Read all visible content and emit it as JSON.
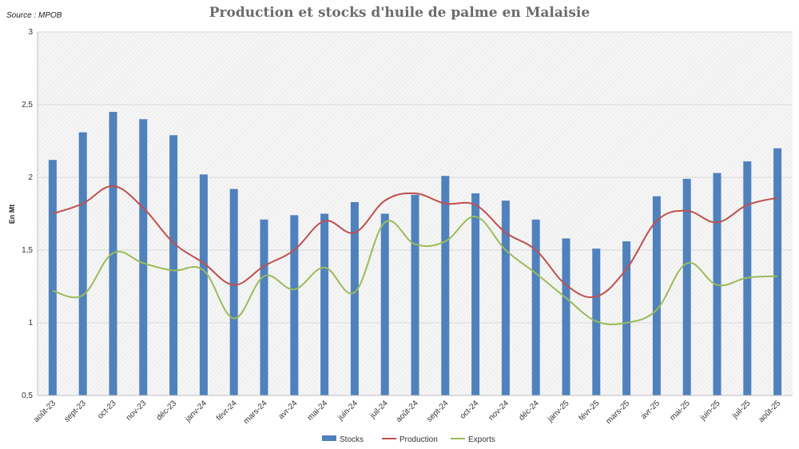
{
  "source": "Source : MPOB",
  "chart_data": {
    "type": "bar",
    "title": "Production et stocks d'huile de palme en Malaisie",
    "xlabel": "",
    "ylabel": "En Mt",
    "ylim": [
      0.5,
      3
    ],
    "yticks": [
      "0,5",
      "1",
      "1,5",
      "2",
      "2,5",
      "3"
    ],
    "ytick_values": [
      0.5,
      1,
      1.5,
      2,
      2.5,
      3
    ],
    "grid": true,
    "legend_position": "bottom",
    "categories": [
      "août-23",
      "sept-23",
      "oct-23",
      "nov-23",
      "déc-23",
      "janv-24",
      "févr-24",
      "mars-24",
      "avr-24",
      "mai-24",
      "juin-24",
      "juil-24",
      "août-24",
      "sept-24",
      "oct-24",
      "nov-24",
      "déc-24",
      "janv-25",
      "févr-25",
      "mars-25",
      "avr-25",
      "mai-25",
      "juin-25",
      "juil-25",
      "août-25"
    ],
    "series": [
      {
        "name": "Stocks",
        "type": "bar",
        "color": "#4f81bd",
        "values": [
          2.12,
          2.31,
          2.45,
          2.4,
          2.29,
          2.02,
          1.92,
          1.71,
          1.74,
          1.75,
          1.83,
          1.75,
          1.88,
          2.01,
          1.89,
          1.84,
          1.71,
          1.58,
          1.51,
          1.56,
          1.87,
          1.99,
          2.03,
          2.11,
          2.2
        ]
      },
      {
        "name": "Production",
        "type": "line",
        "color": "#c0504d",
        "values": [
          1.75,
          1.82,
          1.94,
          1.79,
          1.55,
          1.41,
          1.26,
          1.39,
          1.5,
          1.7,
          1.62,
          1.84,
          1.89,
          1.82,
          1.81,
          1.62,
          1.5,
          1.26,
          1.18,
          1.37,
          1.7,
          1.77,
          1.69,
          1.81,
          1.86
        ]
      },
      {
        "name": "Exports",
        "type": "line",
        "color": "#9bbb59",
        "values": [
          1.22,
          1.19,
          1.48,
          1.41,
          1.36,
          1.36,
          1.03,
          1.32,
          1.23,
          1.38,
          1.21,
          1.69,
          1.54,
          1.56,
          1.73,
          1.5,
          1.34,
          1.17,
          1.01,
          1.0,
          1.09,
          1.41,
          1.26,
          1.31,
          1.32
        ]
      }
    ]
  }
}
